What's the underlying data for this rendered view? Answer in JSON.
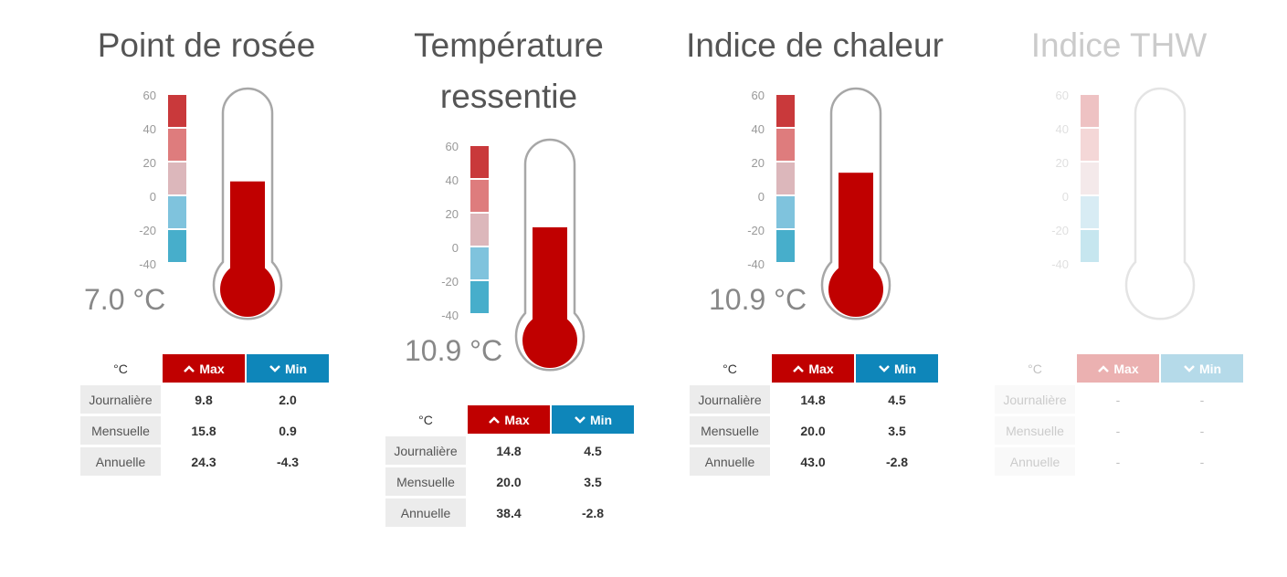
{
  "colors": {
    "mercury": "#c00000",
    "glass_outline": "#a7a7a7",
    "scale": [
      "#c9393b",
      "#de7c7d",
      "#dcb7bb",
      "#7fc3dd",
      "#47aecb"
    ],
    "max_header": "#c00000",
    "min_header": "#0e86ba"
  },
  "icons": {
    "max": "chevron-up-icon",
    "min": "chevron-down-icon"
  },
  "panels": [
    {
      "title_lines": [
        "Point de rosée"
      ],
      "scale_ticks": [
        "60",
        "40",
        "20",
        "0",
        "-20",
        "-40"
      ],
      "scale_range": [
        -40,
        60
      ],
      "reading": "7.0 °C",
      "fill_level": 0.57,
      "enabled": true,
      "table": {
        "unit": "°C",
        "max_label": "Max",
        "min_label": "Min",
        "rows": [
          {
            "label": "Journalière",
            "max": "9.8",
            "min": "2.0"
          },
          {
            "label": "Mensuelle",
            "max": "15.8",
            "min": "0.9"
          },
          {
            "label": "Annuelle",
            "max": "24.3",
            "min": "-4.3"
          }
        ]
      }
    },
    {
      "title_lines": [
        "Température",
        "ressentie"
      ],
      "scale_ticks": [
        "60",
        "40",
        "20",
        "0",
        "-20",
        "-40"
      ],
      "scale_range": [
        -40,
        60
      ],
      "reading": "10.9 °C",
      "fill_level": 0.6,
      "enabled": true,
      "table": {
        "unit": "°C",
        "max_label": "Max",
        "min_label": "Min",
        "rows": [
          {
            "label": "Journalière",
            "max": "14.8",
            "min": "4.5"
          },
          {
            "label": "Mensuelle",
            "max": "20.0",
            "min": "3.5"
          },
          {
            "label": "Annuelle",
            "max": "38.4",
            "min": "-2.8"
          }
        ]
      }
    },
    {
      "title_lines": [
        "Indice de chaleur"
      ],
      "scale_ticks": [
        "60",
        "40",
        "20",
        "0",
        "-20",
        "-40"
      ],
      "scale_range": [
        -40,
        60
      ],
      "reading": "10.9 °C",
      "fill_level": 0.62,
      "enabled": true,
      "table": {
        "unit": "°C",
        "max_label": "Max",
        "min_label": "Min",
        "rows": [
          {
            "label": "Journalière",
            "max": "14.8",
            "min": "4.5"
          },
          {
            "label": "Mensuelle",
            "max": "20.0",
            "min": "3.5"
          },
          {
            "label": "Annuelle",
            "max": "43.0",
            "min": "-2.8"
          }
        ]
      }
    },
    {
      "title_lines": [
        "Indice THW"
      ],
      "scale_ticks": [
        "60",
        "40",
        "20",
        "0",
        "-20",
        "-40"
      ],
      "scale_range": [
        -40,
        60
      ],
      "reading": "",
      "fill_level": 0,
      "enabled": false,
      "table": {
        "unit": "°C",
        "max_label": "Max",
        "min_label": "Min",
        "rows": [
          {
            "label": "Journalière",
            "max": "-",
            "min": "-"
          },
          {
            "label": "Mensuelle",
            "max": "-",
            "min": "-"
          },
          {
            "label": "Annuelle",
            "max": "-",
            "min": "-"
          }
        ]
      }
    }
  ]
}
